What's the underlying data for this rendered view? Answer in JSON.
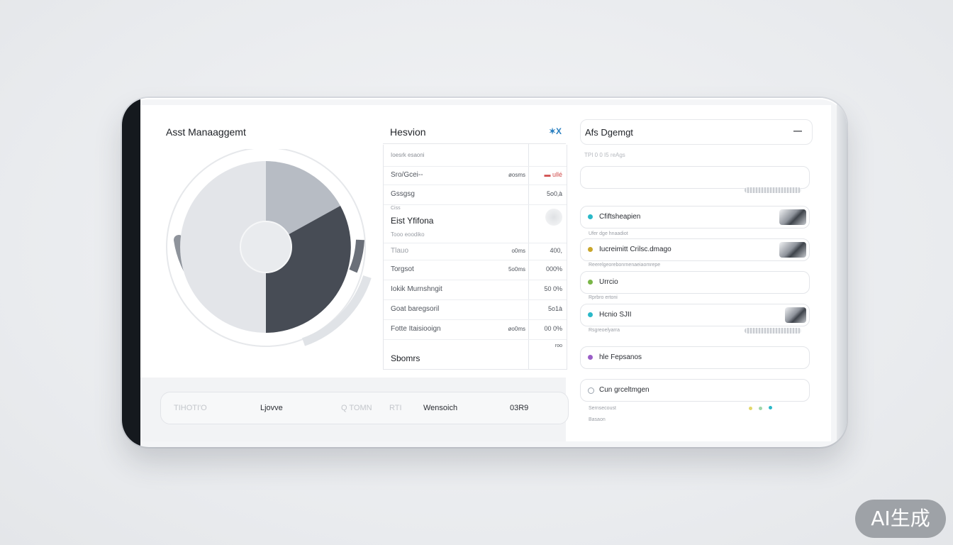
{
  "asset_card": {
    "title": "Asst Manaaggemt"
  },
  "history": {
    "title": "Hesvion",
    "close_label": "✶X",
    "header_row": "Ioesrk esaoni",
    "rows": [
      {
        "label": "Sro/Gcei--",
        "mid": "øosms",
        "val": "▬ ullé",
        "emph": "red"
      },
      {
        "label": "Gssgsg",
        "mid": "",
        "val": "5o0‚à"
      },
      {
        "label": "Eist  Yfifona",
        "mid": "",
        "val": "",
        "bold": true,
        "pre": "Ciss",
        "post": "Tooo eoodiko"
      },
      {
        "label": "Tlauo",
        "mid": "o0ms",
        "val": "400,"
      },
      {
        "label": "Torgsot",
        "mid": "5o0ms",
        "val": "000%"
      },
      {
        "label": "Iokik Murnshngit",
        "mid": "",
        "val": "50 0%"
      },
      {
        "label": "Goat baregsoril",
        "mid": "",
        "val": "5o1à"
      },
      {
        "label": "Fotte  Itaisiooign",
        "mid": "øo0ms",
        "val": "00 0%"
      },
      {
        "label": "Sbomrs",
        "mid": "",
        "val": "roo",
        "bold": true
      }
    ]
  },
  "bottom_bar": {
    "items": [
      "TIHOTI'O",
      "Ljovve",
      "Q TOMN",
      "RTI",
      "Wensoich",
      "03R9"
    ]
  },
  "activity": {
    "title": "Afs Dgemgt",
    "menu_label": "—",
    "subtitle": "TPI 0 0 I5 reAgs",
    "rows": [
      {
        "label": "Cfiftsheapien",
        "dot": "#2ab8c8",
        "thumb": true
      },
      {
        "label": "Iucreimitt Crilsc.dmago",
        "dot": "#c9a62b",
        "thumb": true
      },
      {
        "label": "Urrcio",
        "dot": "#7ab648"
      },
      {
        "label": "Hcnio SJII",
        "dot": "#2ab8c8",
        "thumb": true
      },
      {
        "label": "hle Fepsanos",
        "dot": "#9a5ec7"
      },
      {
        "label": "Cun grceltmgen",
        "dot": "#9aa3ad"
      }
    ],
    "meta": [
      "Ufer dge hnaadiot",
      "Reerelgeorebonrnenaeiaomrepe",
      "Rprbro ertoni",
      "Rsgreoelyarra",
      "Sernsecoust",
      "Basaon"
    ]
  },
  "watermark": "AI生成",
  "colors": {
    "pie_light": "#e3e5e9",
    "pie_mid": "#b7bcc4",
    "pie_dark": "#474c55",
    "bezel": "#15191e"
  }
}
